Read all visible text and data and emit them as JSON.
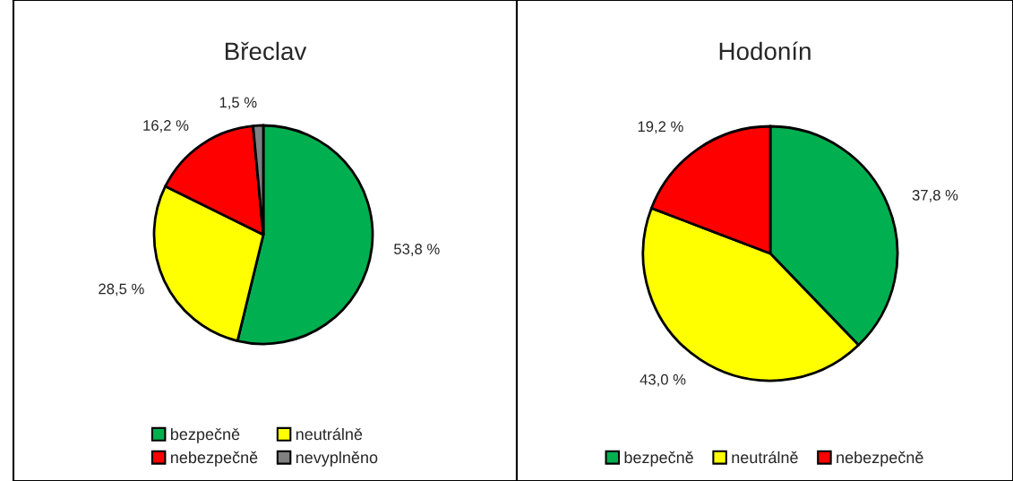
{
  "chart_data": [
    {
      "type": "pie",
      "title": "Břeclav",
      "categories": [
        "bezpečně",
        "neutrálně",
        "nebezpečně",
        "nevyplněno"
      ],
      "values": [
        53.8,
        28.5,
        16.2,
        1.5
      ],
      "colors": [
        "#00b050",
        "#ffff00",
        "#ff0000",
        "#808080"
      ],
      "value_labels": [
        "53,8 %",
        "28,5 %",
        "16,2 %",
        "1,5 %"
      ],
      "legend": "bottom"
    },
    {
      "type": "pie",
      "title": "Hodonín",
      "categories": [
        "bezpečně",
        "neutrálně",
        "nebezpečně"
      ],
      "values": [
        37.8,
        43.0,
        19.2
      ],
      "colors": [
        "#00b050",
        "#ffff00",
        "#ff0000"
      ],
      "value_labels": [
        "37,8 %",
        "43,0 %",
        "19,2 %"
      ],
      "legend": "bottom"
    }
  ]
}
